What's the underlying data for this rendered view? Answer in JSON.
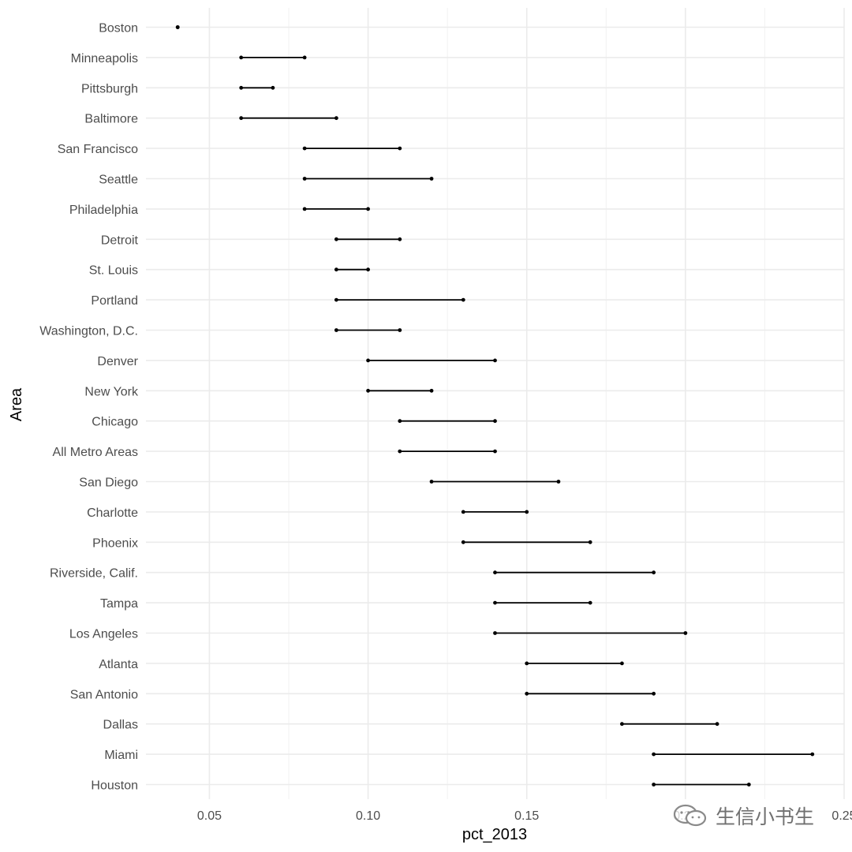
{
  "chart_data": {
    "type": "dumbbell",
    "xlabel": "pct_2013",
    "ylabel": "Area",
    "xlim": [
      0.03,
      0.25
    ],
    "x_ticks": [
      0.05,
      0.1,
      0.15,
      0.2,
      0.25
    ],
    "x_tick_labels": [
      "0.05",
      "0.10",
      "0.15",
      "0.20",
      "0.25"
    ],
    "grid": true,
    "categories": [
      "Boston",
      "Minneapolis",
      "Pittsburgh",
      "Baltimore",
      "San Francisco",
      "Seattle",
      "Philadelphia",
      "Detroit",
      "St. Louis",
      "Portland",
      "Washington, D.C.",
      "Denver",
      "New York",
      "Chicago",
      "All Metro Areas",
      "San Diego",
      "Charlotte",
      "Phoenix",
      "Riverside, Calif.",
      "Tampa",
      "Los Angeles",
      "Atlanta",
      "San Antonio",
      "Dallas",
      "Miami",
      "Houston"
    ],
    "series": [
      {
        "values": [
          0.04,
          0.06,
          0.06,
          0.06,
          0.08,
          0.08,
          0.08,
          0.09,
          0.09,
          0.09,
          0.09,
          0.1,
          0.1,
          0.11,
          0.11,
          0.12,
          0.13,
          0.13,
          0.14,
          0.14,
          0.14,
          0.15,
          0.15,
          0.18,
          0.19,
          0.19
        ]
      },
      {
        "values": [
          0.04,
          0.08,
          0.07,
          0.09,
          0.11,
          0.12,
          0.1,
          0.11,
          0.1,
          0.13,
          0.11,
          0.14,
          0.12,
          0.14,
          0.14,
          0.16,
          0.15,
          0.17,
          0.19,
          0.17,
          0.2,
          0.18,
          0.19,
          0.21,
          0.24,
          0.22
        ]
      }
    ]
  },
  "watermark": {
    "text": "生信小书生",
    "icon": "wechat-icon"
  }
}
